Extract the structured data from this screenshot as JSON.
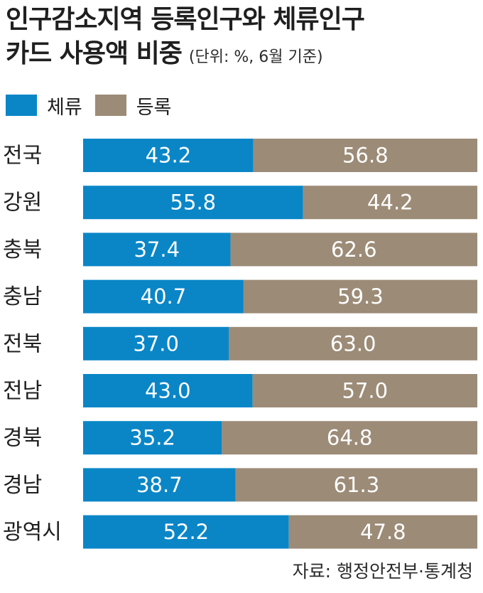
{
  "title_line1": "인구감소지역 등록인구와 체류인구",
  "title_line2": "카드 사용액 비중",
  "unit_note": "(단위: %, 6월 기준)",
  "source": "자료: 행정안전부·통계청",
  "colors": {
    "stay": "#0a86c7",
    "registered": "#9c8b77"
  },
  "chart_data": {
    "type": "bar",
    "orientation": "horizontal",
    "stacked": true,
    "title": "인구감소지역 등록인구와 체류인구 카드 사용액 비중",
    "unit": "%",
    "xlim": [
      0,
      100
    ],
    "legend_position": "top-left",
    "categories": [
      "전국",
      "강원",
      "충북",
      "충남",
      "전북",
      "전남",
      "경북",
      "경남",
      "광역시"
    ],
    "series": [
      {
        "name": "체류",
        "values": [
          43.2,
          55.8,
          37.4,
          40.7,
          37.0,
          43.0,
          35.2,
          38.7,
          52.2
        ]
      },
      {
        "name": "등록",
        "values": [
          56.8,
          44.2,
          62.6,
          59.3,
          63.0,
          57.0,
          64.8,
          61.3,
          47.8
        ]
      }
    ]
  }
}
